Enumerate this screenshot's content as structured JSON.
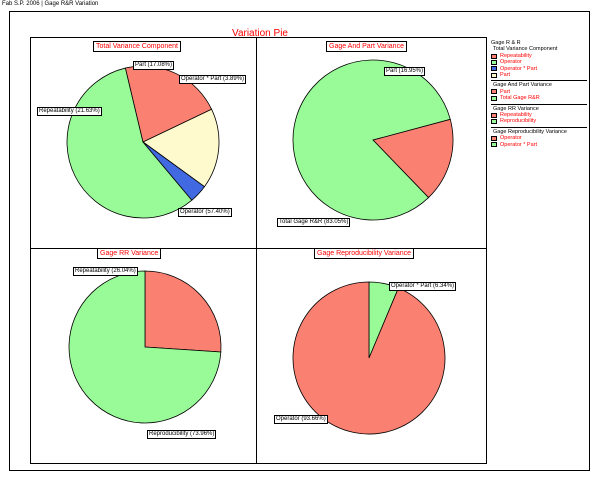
{
  "header_text": "Fab S.P. 2006 | Gage R&R Variation",
  "chart_data": [
    {
      "type": "pie",
      "title": "Total Variance Component",
      "slices": [
        {
          "label": "Operator",
          "value": 57.4,
          "color": "#98fb98",
          "callout": "Operator (57.40%)"
        },
        {
          "label": "Repeatability",
          "value": 21.63,
          "color": "#fa8072",
          "callout": "Repeatability (21.63%)"
        },
        {
          "label": "Part",
          "value": 17.08,
          "color": "#fffacd",
          "callout": "Part (17.08%)"
        },
        {
          "label": "Operator * Part",
          "value": 3.89,
          "color": "#4169e1",
          "callout": "Operator * Part (3.89%)"
        }
      ]
    },
    {
      "type": "pie",
      "title": "Gage And Part Variance",
      "slices": [
        {
          "label": "Part",
          "value": 16.95,
          "color": "#fa8072",
          "callout": "Part (16.95%)"
        },
        {
          "label": "Total Gage R&R",
          "value": 83.05,
          "color": "#98fb98",
          "callout": "Total Gage R&R (83.05%)"
        }
      ]
    },
    {
      "type": "pie",
      "title": "Gage RR Variance",
      "slices": [
        {
          "label": "Repeatability",
          "value": 26.04,
          "color": "#fa8072",
          "callout": "Repeatability (26.04%)"
        },
        {
          "label": "Reproducibility",
          "value": 73.96,
          "color": "#98fb98",
          "callout": "Reproducibility (73.96%)"
        }
      ]
    },
    {
      "type": "pie",
      "title": "Gage Reproducibility Variance",
      "slices": [
        {
          "label": "Operator * Part",
          "value": 6.34,
          "color": "#98fb98",
          "callout": "Operator * Part (6.34%)"
        },
        {
          "label": "Operator",
          "value": 93.66,
          "color": "#fa8072",
          "callout": "Operator (93.66%)"
        }
      ]
    }
  ],
  "title": "Variation Pie",
  "legend": {
    "title": "Gage R & R",
    "groups": [
      {
        "heading": "Total Variance Component",
        "items": [
          {
            "label": "Repeatability",
            "color": "#fa8072"
          },
          {
            "label": "Operator",
            "color": "#98fb98"
          },
          {
            "label": "Operator * Part",
            "color": "#4169e1"
          },
          {
            "label": "Part",
            "color": "#fffacd"
          }
        ]
      },
      {
        "heading": "Gage And Part Variance",
        "items": [
          {
            "label": "Part",
            "color": "#fa8072"
          },
          {
            "label": "Total Gage R&R",
            "color": "#98fb98"
          }
        ]
      },
      {
        "heading": "Gage RR Variance",
        "items": [
          {
            "label": "Repeatability",
            "color": "#fa8072"
          },
          {
            "label": "Reproducibility",
            "color": "#98fb98"
          }
        ]
      },
      {
        "heading": "Gage Reproducibility Variance",
        "items": [
          {
            "label": "Operator",
            "color": "#fa8072"
          },
          {
            "label": "Operator * Part",
            "color": "#98fb98"
          }
        ]
      }
    ]
  }
}
